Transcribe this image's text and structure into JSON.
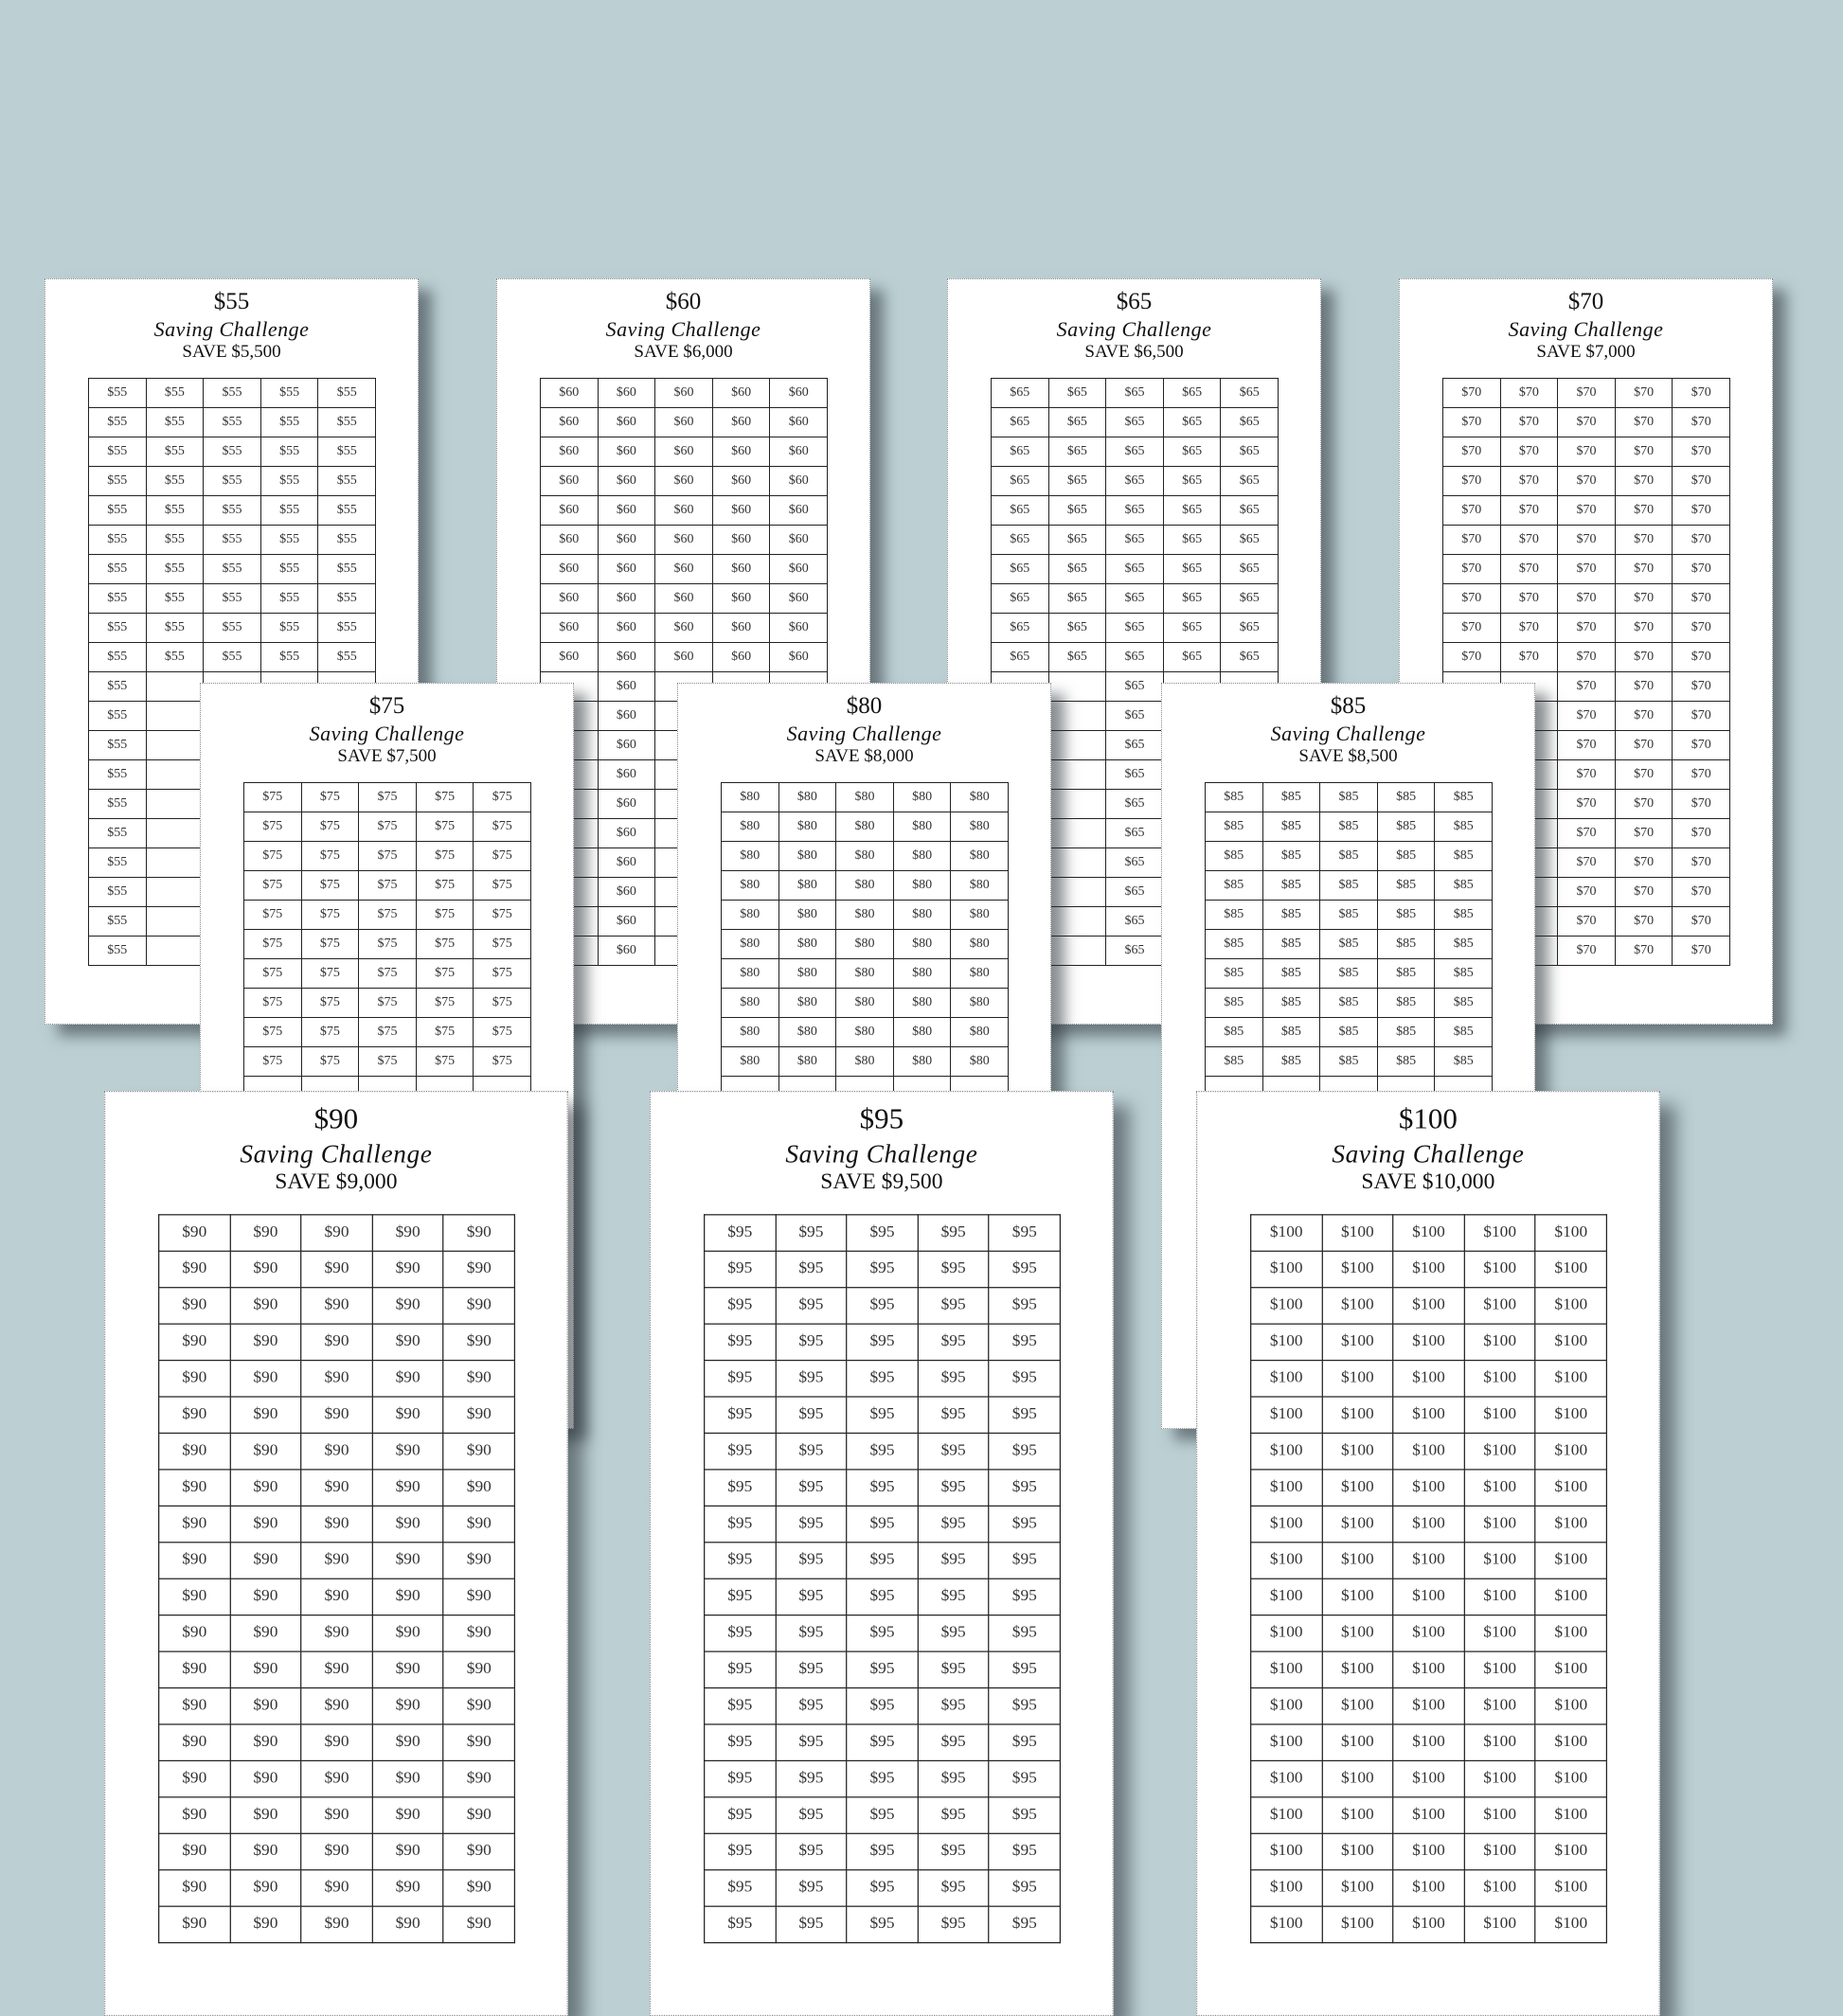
{
  "background_color": "#bcd0d4",
  "sheets": [
    {
      "amount": "$55",
      "title": "Saving Challenge",
      "save": "SAVE $5,500",
      "cell": "$55"
    },
    {
      "amount": "$60",
      "title": "Saving Challenge",
      "save": "SAVE $6,000",
      "cell": "$60"
    },
    {
      "amount": "$65",
      "title": "Saving Challenge",
      "save": "SAVE $6,500",
      "cell": "$65"
    },
    {
      "amount": "$70",
      "title": "Saving Challenge",
      "save": "SAVE $7,000",
      "cell": "$70"
    },
    {
      "amount": "$75",
      "title": "Saving Challenge",
      "save": "SAVE $7,500",
      "cell": "$75"
    },
    {
      "amount": "$80",
      "title": "Saving Challenge",
      "save": "SAVE $8,000",
      "cell": "$80"
    },
    {
      "amount": "$85",
      "title": "Saving Challenge",
      "save": "SAVE $8,500",
      "cell": "$85"
    },
    {
      "amount": "$90",
      "title": "Saving Challenge",
      "save": "SAVE $9,000",
      "cell": "$90"
    },
    {
      "amount": "$95",
      "title": "Saving Challenge",
      "save": "SAVE $9,500",
      "cell": "$95"
    },
    {
      "amount": "$100",
      "title": "Saving Challenge",
      "save": "SAVE $10,000",
      "cell": "$100"
    }
  ]
}
